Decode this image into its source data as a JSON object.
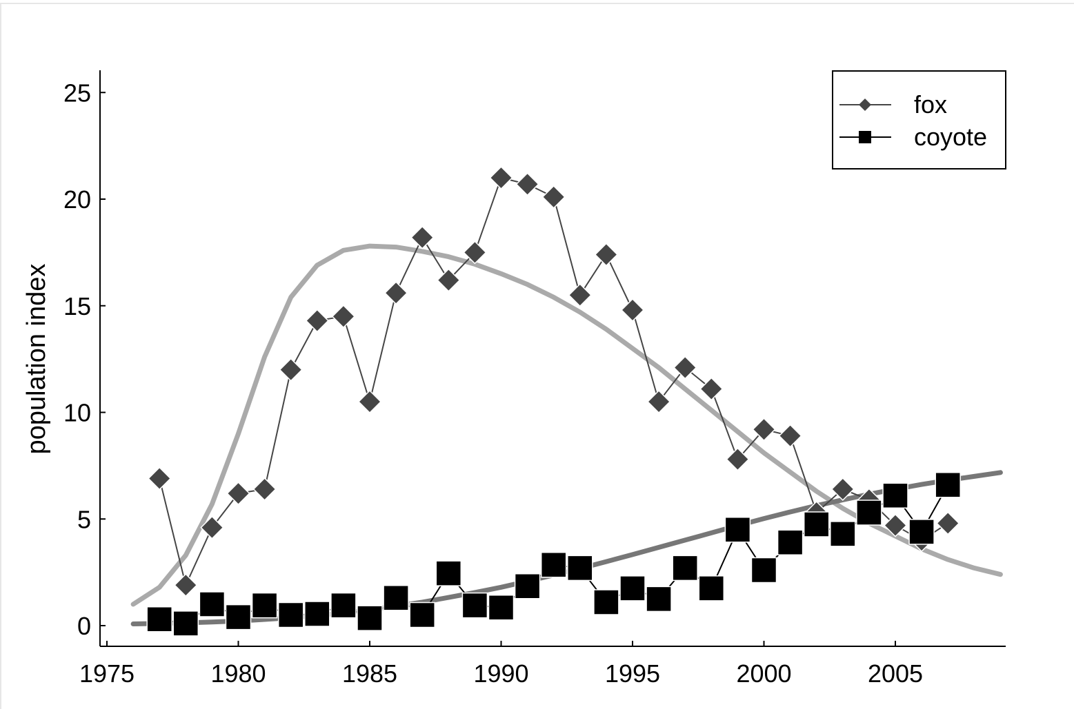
{
  "chart_data": {
    "type": "line",
    "title": "",
    "xlabel": "",
    "ylabel": "population index",
    "xlim": [
      1975.5,
      2009
    ],
    "ylim": [
      -1,
      26
    ],
    "x_ticks": [
      1975,
      1980,
      1985,
      1990,
      1995,
      2000,
      2005
    ],
    "y_ticks": [
      0,
      5,
      10,
      15,
      20,
      25
    ],
    "grid": false,
    "legend_position": "top-right",
    "colors": {
      "fox": "#454545",
      "coyote": "#000000",
      "fox_fit": "#aaaaaa",
      "coyote_fit": "#777777"
    },
    "series": [
      {
        "name": "fox",
        "marker": "diamond",
        "x": [
          1977,
          1978,
          1979,
          1980,
          1981,
          1982,
          1983,
          1984,
          1985,
          1986,
          1987,
          1988,
          1989,
          1990,
          1991,
          1992,
          1993,
          1994,
          1995,
          1996,
          1997,
          1998,
          1999,
          2000,
          2001,
          2002,
          2003,
          2004,
          2005,
          2006,
          2007
        ],
        "values": [
          6.9,
          1.9,
          4.6,
          6.2,
          6.4,
          12.0,
          14.3,
          14.5,
          10.5,
          15.6,
          18.2,
          16.2,
          17.5,
          21.0,
          20.7,
          20.1,
          15.5,
          17.4,
          14.8,
          10.5,
          12.1,
          11.1,
          7.8,
          9.2,
          8.9,
          5.3,
          6.4,
          5.9,
          4.7,
          4.0,
          4.8
        ]
      },
      {
        "name": "coyote",
        "marker": "square",
        "x": [
          1977,
          1978,
          1979,
          1980,
          1981,
          1982,
          1983,
          1984,
          1985,
          1986,
          1987,
          1988,
          1989,
          1990,
          1991,
          1992,
          1993,
          1994,
          1995,
          1996,
          1997,
          1998,
          1999,
          2000,
          2001,
          2002,
          2003,
          2004,
          2005,
          2006,
          2007
        ],
        "values": [
          0.3,
          0.1,
          1.0,
          0.4,
          0.95,
          0.5,
          0.55,
          0.95,
          0.35,
          1.3,
          0.5,
          2.45,
          0.95,
          0.85,
          1.85,
          2.85,
          2.7,
          1.1,
          1.75,
          1.25,
          2.7,
          1.75,
          4.5,
          2.6,
          3.9,
          4.75,
          4.3,
          5.3,
          6.1,
          4.4,
          6.6
        ]
      }
    ],
    "fit_curves": [
      {
        "x": [
          1976,
          1977,
          1978,
          1979,
          1980,
          1981,
          1982,
          1983,
          1984,
          1985,
          1986,
          1987,
          1988,
          1989,
          1990,
          1991,
          1992,
          1993,
          1994,
          1995,
          1996,
          1997,
          1998,
          1999,
          2000,
          2001,
          2002,
          2003,
          2004,
          2005,
          2006,
          2007,
          2008,
          2009
        ],
        "values": [
          1.0,
          1.8,
          3.3,
          5.7,
          9.0,
          12.6,
          15.4,
          16.9,
          17.6,
          17.8,
          17.75,
          17.55,
          17.3,
          16.95,
          16.5,
          16.0,
          15.4,
          14.7,
          13.9,
          13.0,
          12.1,
          11.1,
          10.1,
          9.1,
          8.1,
          7.2,
          6.3,
          5.5,
          4.8,
          4.2,
          3.6,
          3.1,
          2.7,
          2.4
        ]
      },
      {
        "x": [
          1976,
          1977,
          1978,
          1979,
          1980,
          1981,
          1982,
          1983,
          1984,
          1985,
          1986,
          1987,
          1988,
          1989,
          1990,
          1991,
          1992,
          1993,
          1994,
          1995,
          1996,
          1997,
          1998,
          1999,
          2000,
          2001,
          2002,
          2003,
          2004,
          2005,
          2006,
          2007,
          2008,
          2009
        ],
        "values": [
          0.08,
          0.1,
          0.13,
          0.17,
          0.22,
          0.29,
          0.37,
          0.47,
          0.6,
          0.75,
          0.92,
          1.1,
          1.32,
          1.55,
          1.8,
          2.08,
          2.37,
          2.68,
          3.0,
          3.33,
          3.67,
          4.01,
          4.35,
          4.69,
          5.02,
          5.33,
          5.63,
          5.9,
          6.16,
          6.4,
          6.62,
          6.82,
          7.0,
          7.18
        ]
      }
    ]
  }
}
